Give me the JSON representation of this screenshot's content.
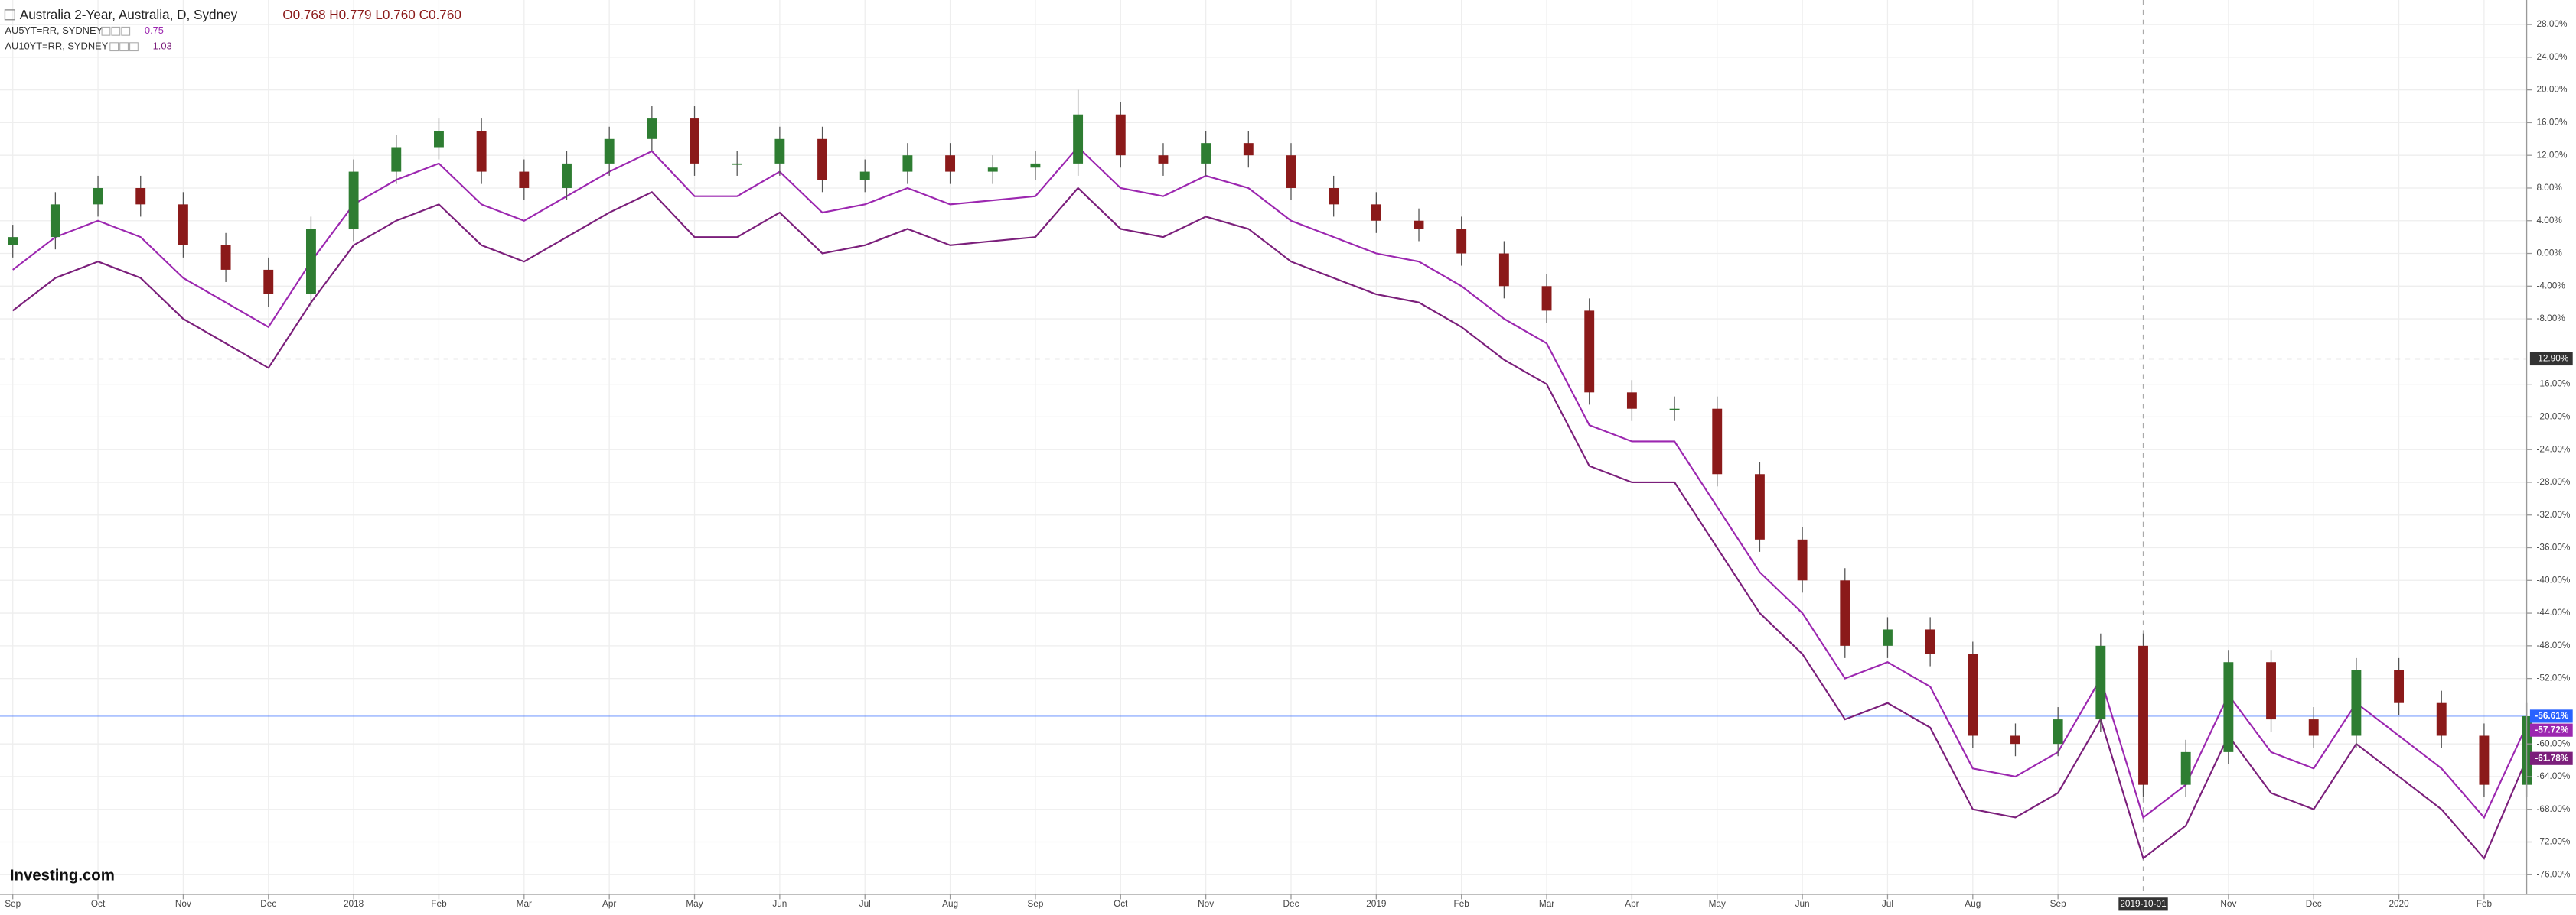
{
  "chart_data": {
    "type": "candlestick",
    "title": "Australia 2-Year, Australia, D, Sydney",
    "ohlc_text": "O0.768 H0.779 L0.760 C0.760",
    "watermark": "Investing.com",
    "grid": true,
    "up_color": "#2e7d32",
    "down_color": "#8b1a1a",
    "price_color": "#2962ff",
    "xlim": [
      -0.15,
      29.5
    ],
    "xticks": [
      {
        "value": 0,
        "label": "Sep"
      },
      {
        "value": 1,
        "label": "Oct"
      },
      {
        "value": 2,
        "label": "Nov"
      },
      {
        "value": 3,
        "label": "Dec"
      },
      {
        "value": 4,
        "label": "2018"
      },
      {
        "value": 5,
        "label": "Feb"
      },
      {
        "value": 6,
        "label": "Mar"
      },
      {
        "value": 7,
        "label": "Apr"
      },
      {
        "value": 8,
        "label": "May"
      },
      {
        "value": 9,
        "label": "Jun"
      },
      {
        "value": 10,
        "label": "Jul"
      },
      {
        "value": 11,
        "label": "Aug"
      },
      {
        "value": 12,
        "label": "Sep"
      },
      {
        "value": 13,
        "label": "Oct"
      },
      {
        "value": 14,
        "label": "Nov"
      },
      {
        "value": 15,
        "label": "Dec"
      },
      {
        "value": 16,
        "label": "2019"
      },
      {
        "value": 17,
        "label": "Feb"
      },
      {
        "value": 18,
        "label": "Mar"
      },
      {
        "value": 19,
        "label": "Apr"
      },
      {
        "value": 20,
        "label": "May"
      },
      {
        "value": 21,
        "label": "Jun"
      },
      {
        "value": 22,
        "label": "Jul"
      },
      {
        "value": 23,
        "label": "Aug"
      },
      {
        "value": 24,
        "label": "Sep"
      },
      {
        "value": 26,
        "label": "Nov"
      },
      {
        "value": 27,
        "label": "Dec"
      },
      {
        "value": 28,
        "label": "2020"
      },
      {
        "value": 29,
        "label": "Feb"
      }
    ],
    "ylim": [
      -78.4,
      31
    ],
    "yticks": [
      {
        "value": 28,
        "label": "28.00%"
      },
      {
        "value": 24,
        "label": "24.00%"
      },
      {
        "value": 20,
        "label": "20.00%"
      },
      {
        "value": 16,
        "label": "16.00%"
      },
      {
        "value": 12,
        "label": "12.00%"
      },
      {
        "value": 8,
        "label": "8.00%"
      },
      {
        "value": 4,
        "label": "4.00%"
      },
      {
        "value": 0,
        "label": "0.00%"
      },
      {
        "value": -4,
        "label": "-4.00%"
      },
      {
        "value": -8,
        "label": "-8.00%"
      },
      {
        "value": -16,
        "label": "-16.00%"
      },
      {
        "value": -20,
        "label": "-20.00%"
      },
      {
        "value": -24,
        "label": "-24.00%"
      },
      {
        "value": -28,
        "label": "-28.00%"
      },
      {
        "value": -32,
        "label": "-32.00%"
      },
      {
        "value": -36,
        "label": "-36.00%"
      },
      {
        "value": -40,
        "label": "-40.00%"
      },
      {
        "value": -44,
        "label": "-44.00%"
      },
      {
        "value": -48,
        "label": "-48.00%"
      },
      {
        "value": -52,
        "label": "-52.00%"
      },
      {
        "value": -60,
        "label": "-60.00%"
      },
      {
        "value": -64,
        "label": "-64.00%"
      },
      {
        "value": -68,
        "label": "-68.00%"
      },
      {
        "value": -72,
        "label": "-72.00%"
      },
      {
        "value": -76,
        "label": "-76.00%"
      }
    ],
    "crosshair": {
      "x": 25,
      "x_label": "2019-10-01",
      "y": -12.9,
      "y_label": "-12.90%"
    },
    "x": [
      0,
      0.5,
      1,
      1.5,
      2,
      2.5,
      3,
      3.5,
      4,
      4.5,
      5,
      5.5,
      6,
      6.5,
      7,
      7.5,
      8,
      8.5,
      9,
      9.5,
      10,
      10.5,
      11,
      11.5,
      12,
      12.5,
      13,
      13.5,
      14,
      14.5,
      15,
      15.5,
      16,
      16.5,
      17,
      17.5,
      18,
      18.5,
      19,
      19.5,
      20,
      20.5,
      21,
      21.5,
      22,
      22.5,
      23,
      23.5,
      24,
      24.5,
      25,
      25.5,
      26,
      26.5,
      27,
      27.5,
      28,
      28.5,
      29,
      29.5
    ],
    "open": [
      1,
      2,
      6,
      8,
      6,
      1,
      -2,
      -5,
      3,
      10,
      13,
      15,
      10,
      8,
      11,
      14,
      16.5,
      11,
      11,
      14,
      9,
      10,
      12,
      10,
      10.5,
      11,
      17,
      12,
      11,
      13.5,
      12,
      8,
      6,
      4,
      3,
      0,
      -4,
      -7,
      -17,
      -19,
      -19,
      -27,
      -35,
      -40,
      -48,
      -46,
      -49,
      -59,
      -60,
      -57,
      -48,
      -65,
      -61,
      -50,
      -57,
      -59,
      -51,
      -55,
      -59,
      -65
    ],
    "high": [
      3.5,
      7.5,
      9.5,
      9.5,
      7.5,
      2.5,
      -0.5,
      4.5,
      11.5,
      14.5,
      16.5,
      16.5,
      11.5,
      12.5,
      15.5,
      18,
      18,
      12.5,
      15.5,
      15.5,
      11.5,
      13.5,
      13.5,
      12,
      12.5,
      20,
      18.5,
      13.5,
      15,
      15,
      13.5,
      9.5,
      7.5,
      5.5,
      4.5,
      1.5,
      -2.5,
      -5.5,
      -15.5,
      -17.5,
      -17.5,
      -25.5,
      -33.5,
      -38.5,
      -44.5,
      -44.5,
      -47.5,
      -57.5,
      -55.5,
      -46.5,
      -46.5,
      -59.5,
      -48.5,
      -48.5,
      -55.5,
      -49.5,
      -49.5,
      -53.5,
      -57.5,
      -55
    ],
    "low": [
      -0.5,
      0.5,
      4.5,
      4.5,
      -0.5,
      -3.5,
      -6.5,
      -6.5,
      1.5,
      8.5,
      11.5,
      8.5,
      6.5,
      6.5,
      9.5,
      12.5,
      9.5,
      9.5,
      9.5,
      7.5,
      7.5,
      8.5,
      8.5,
      8.5,
      9,
      9.5,
      10.5,
      9.5,
      9.5,
      10.5,
      6.5,
      4.5,
      2.5,
      1.5,
      -1.5,
      -5.5,
      -8.5,
      -18.5,
      -20.5,
      -20.5,
      -28.5,
      -36.5,
      -41.5,
      -49.5,
      -49.5,
      -50.5,
      -60.5,
      -61.5,
      -61.5,
      -58.5,
      -66.5,
      -66.5,
      -62.5,
      -58.5,
      -60.5,
      -60.5,
      -56.5,
      -60.5,
      -66.5,
      -66.5
    ],
    "close": [
      2,
      6,
      8,
      6,
      1,
      -2,
      -5,
      3,
      10,
      13,
      15,
      10,
      8,
      11,
      14,
      16.5,
      11,
      11,
      14,
      9,
      10,
      12,
      10,
      10.5,
      11,
      17,
      12,
      11,
      13.5,
      12,
      8,
      6,
      4,
      3,
      0,
      -4,
      -7,
      -17,
      -19,
      -19,
      -27,
      -35,
      -40,
      -48,
      -46,
      -49,
      -59,
      -60,
      -57,
      -48,
      -65,
      -61,
      -50,
      -57,
      -59,
      -51,
      -55,
      -59,
      -65,
      -56.61
    ],
    "close_labels": [
      null,
      null,
      null,
      null,
      null,
      null,
      null,
      null,
      null,
      null,
      null,
      null,
      null,
      null,
      null,
      null,
      null,
      null,
      null,
      null,
      null,
      null,
      null,
      null,
      null,
      null,
      null,
      null,
      null,
      null,
      null,
      null,
      null,
      null,
      null,
      null,
      null,
      null,
      null,
      null,
      null,
      null,
      null,
      null,
      null,
      null,
      null,
      null,
      null,
      null,
      null,
      null,
      null,
      null,
      null,
      null,
      null,
      null,
      null,
      "-56.61%"
    ],
    "series": [
      {
        "name": "AU5YT=RR, SYDNEY",
        "last": "0.75",
        "color": "#9c27b0",
        "values": [
          -2,
          2,
          4,
          2,
          -3,
          -6,
          -9,
          -1,
          6,
          9,
          11,
          6,
          4,
          7,
          10,
          12.5,
          7,
          7,
          10,
          5,
          6,
          8,
          6,
          6.5,
          7,
          13,
          8,
          7,
          9.5,
          8,
          4,
          2,
          0,
          -1,
          -4,
          -8,
          -11,
          -21,
          -23,
          -23,
          -31,
          -39,
          -44,
          -52,
          -50,
          -53,
          -63,
          -64,
          -61,
          -52,
          -69,
          -65,
          -54,
          -61,
          -63,
          -55,
          -59,
          -63,
          -69,
          -57.72
        ],
        "value_labels": [
          null,
          null,
          null,
          null,
          null,
          null,
          null,
          null,
          null,
          null,
          null,
          null,
          null,
          null,
          null,
          null,
          null,
          null,
          null,
          null,
          null,
          null,
          null,
          null,
          null,
          null,
          null,
          null,
          null,
          null,
          null,
          null,
          null,
          null,
          null,
          null,
          null,
          null,
          null,
          null,
          null,
          null,
          null,
          null,
          null,
          null,
          null,
          null,
          null,
          null,
          null,
          null,
          null,
          null,
          null,
          null,
          null,
          null,
          null,
          "-57.72%"
        ]
      },
      {
        "name": "AU10YT=RR, SYDNEY",
        "last": "1.03",
        "color": "#7b1f7b",
        "values": [
          -7,
          -3,
          -1,
          -3,
          -8,
          -11,
          -14,
          -6,
          1,
          4,
          6,
          1,
          -1,
          2,
          5,
          7.5,
          2,
          2,
          5,
          0,
          1,
          3,
          1,
          1.5,
          2,
          8,
          3,
          2,
          4.5,
          3,
          -1,
          -3,
          -5,
          -6,
          -9,
          -13,
          -16,
          -26,
          -28,
          -28,
          -36,
          -44,
          -49,
          -57,
          -55,
          -58,
          -68,
          -69,
          -66,
          -57,
          -74,
          -70,
          -59,
          -66,
          -68,
          -60,
          -64,
          -68,
          -74,
          -61.78
        ],
        "value_labels": [
          null,
          null,
          null,
          null,
          null,
          null,
          null,
          null,
          null,
          null,
          null,
          null,
          null,
          null,
          null,
          null,
          null,
          null,
          null,
          null,
          null,
          null,
          null,
          null,
          null,
          null,
          null,
          null,
          null,
          null,
          null,
          null,
          null,
          null,
          null,
          null,
          null,
          null,
          null,
          null,
          null,
          null,
          null,
          null,
          null,
          null,
          null,
          null,
          null,
          null,
          null,
          null,
          null,
          null,
          null,
          null,
          null,
          null,
          null,
          "-61.78%"
        ]
      }
    ]
  }
}
